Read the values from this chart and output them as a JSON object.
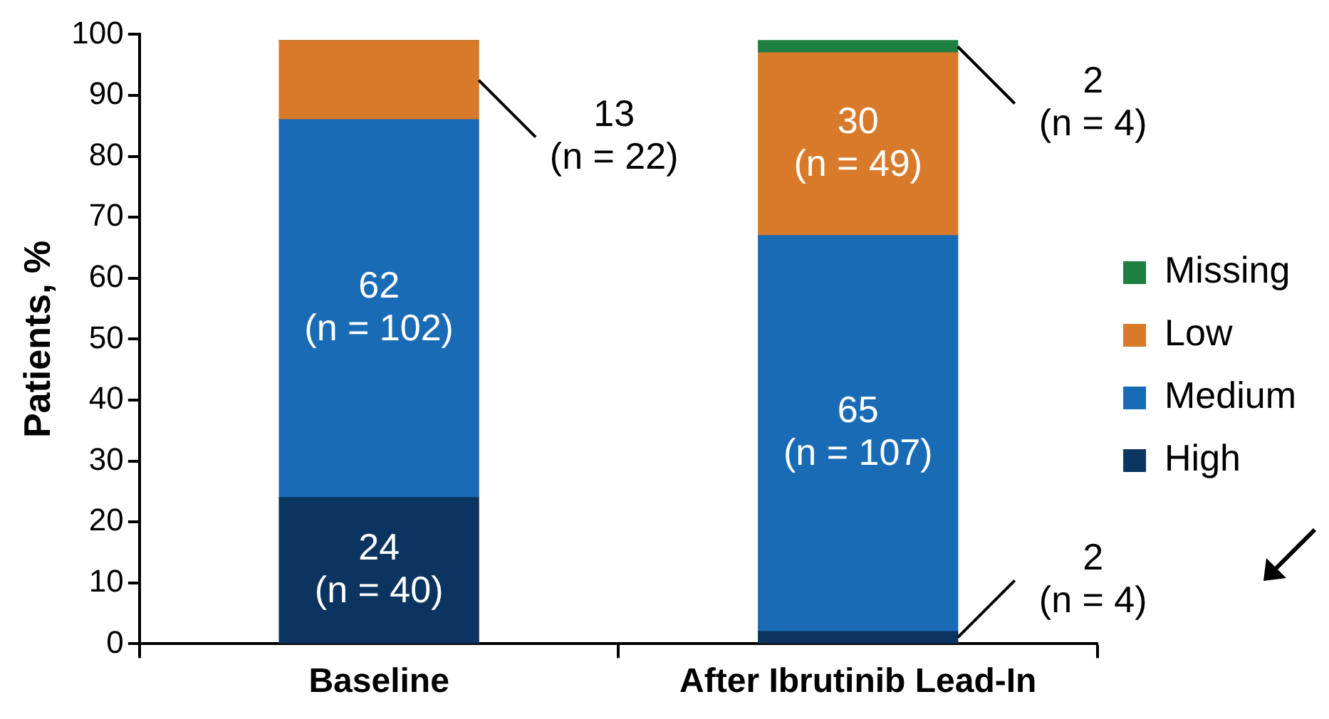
{
  "chart_data": {
    "type": "bar",
    "stacked": true,
    "ylabel": "Patients, %",
    "categories": [
      "Baseline",
      "After Ibrutinib Lead-In"
    ],
    "ylim": [
      0,
      100
    ],
    "yticks": [
      0,
      10,
      20,
      30,
      40,
      50,
      60,
      70,
      80,
      90,
      100
    ],
    "grid": false,
    "legend": "right",
    "series": [
      {
        "name": "High",
        "color": "#0b3460",
        "values": [
          24,
          2
        ],
        "value_labels": [
          "24\n(n = 40)",
          "2\n(n = 4)"
        ]
      },
      {
        "name": "Medium",
        "color": "#1a6bb5",
        "values": [
          62,
          65
        ],
        "value_labels": [
          "62\n(n = 102)",
          "65\n(n = 107)"
        ]
      },
      {
        "name": "Low",
        "color": "#d97a2a",
        "values": [
          13,
          30
        ],
        "value_labels": [
          "13\n(n = 22)",
          "30\n(n = 49)"
        ]
      },
      {
        "name": "Missing",
        "color": "#1e8040",
        "values": [
          0,
          2
        ],
        "value_labels": [
          null,
          "2\n(n = 4)"
        ]
      }
    ]
  }
}
